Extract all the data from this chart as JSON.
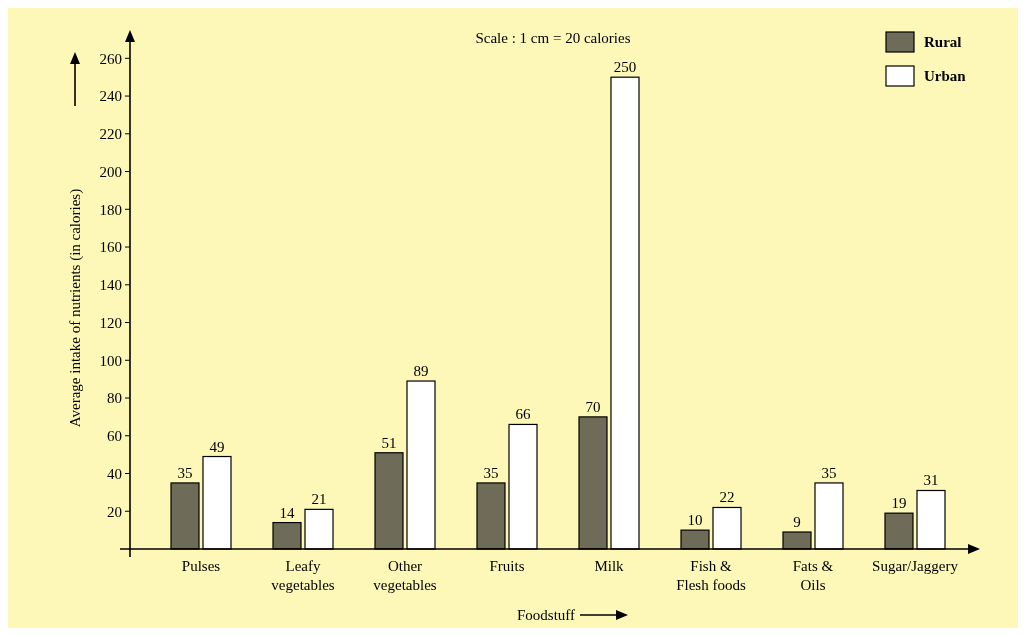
{
  "chart_data": {
    "type": "bar",
    "annotations": [
      "Scale : 1 cm = 20 calories"
    ],
    "xlabel": "Foodstuff",
    "ylabel": "Average intake of nutrients (in calories)",
    "categories": [
      "Pulses",
      "Leafy vegetables",
      "Other vegetables",
      "Fruits",
      "Milk",
      "Fish & Flesh foods",
      "Fats & Oils",
      "Sugar/Jaggery"
    ],
    "series": [
      {
        "name": "Rural",
        "color": "#6e6b58",
        "values": [
          35,
          14,
          51,
          35,
          70,
          10,
          9,
          19
        ]
      },
      {
        "name": "Urban",
        "color": "#ffffff",
        "values": [
          49,
          21,
          89,
          66,
          250,
          22,
          35,
          31
        ]
      }
    ],
    "ylim": [
      0,
      275
    ],
    "yticks": [
      20,
      40,
      60,
      80,
      100,
      120,
      140,
      160,
      180,
      200,
      220,
      240,
      260
    ],
    "data_labels": true,
    "legend": "top right",
    "grid": false
  }
}
